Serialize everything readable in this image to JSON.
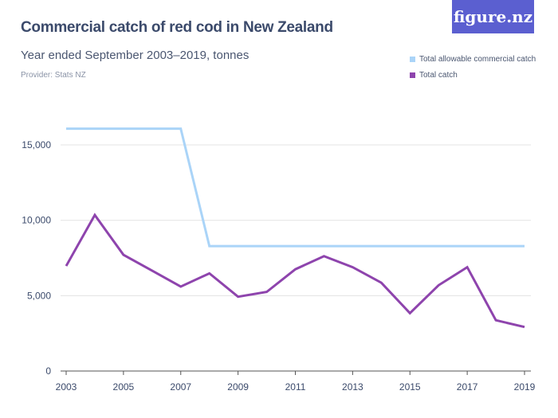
{
  "header": {
    "title": "Commercial catch of red cod in New Zealand",
    "subtitle": "Year ended September 2003–2019, tonnes",
    "provider": "Provider: Stats NZ",
    "logo": "figure.nz"
  },
  "colors": {
    "tacc": "#aad4f8",
    "catch": "#8e44ad",
    "grid": "#e3e3e3",
    "logo_bg": "#5b5fd0"
  },
  "chart_data": {
    "type": "line",
    "title": "Commercial catch of red cod in New Zealand",
    "subtitle": "Year ended September 2003–2019, tonnes",
    "x": [
      2003,
      2004,
      2005,
      2006,
      2007,
      2008,
      2009,
      2010,
      2011,
      2012,
      2013,
      2014,
      2015,
      2016,
      2017,
      2018,
      2019
    ],
    "xticks": [
      "2003",
      "2005",
      "2007",
      "2009",
      "2011",
      "2013",
      "2015",
      "2017",
      "2019"
    ],
    "yticks": [
      "0",
      "5,000",
      "10,000",
      "15,000"
    ],
    "ylim": [
      0,
      16500
    ],
    "grid": true,
    "legend_placement": "top-right",
    "series": [
      {
        "name": "Total allowable commercial catch",
        "values": [
          16080,
          16080,
          16080,
          16080,
          16080,
          8290,
          8290,
          8290,
          8290,
          8290,
          8290,
          8290,
          8290,
          8290,
          8290,
          8290,
          8290
        ]
      },
      {
        "name": "Total catch",
        "values": [
          6970,
          10350,
          7710,
          6660,
          5600,
          6480,
          4930,
          5250,
          6750,
          7620,
          6890,
          5860,
          3840,
          5690,
          6890,
          3370,
          2920
        ]
      }
    ]
  }
}
